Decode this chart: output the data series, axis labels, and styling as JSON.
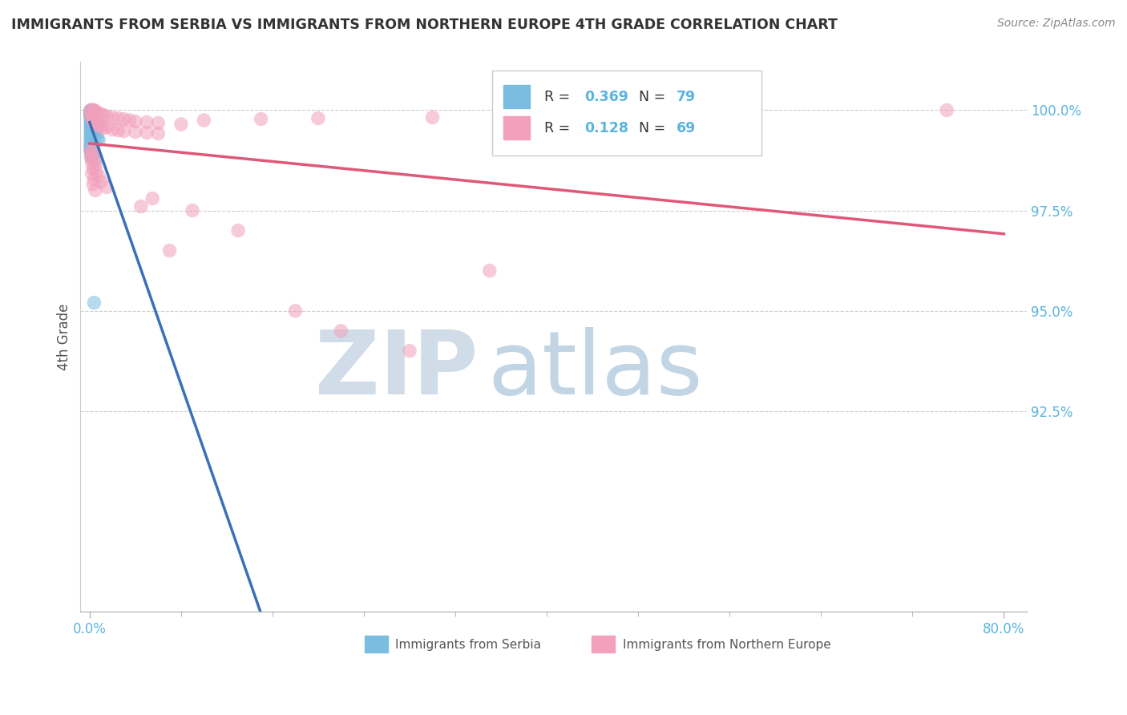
{
  "title": "IMMIGRANTS FROM SERBIA VS IMMIGRANTS FROM NORTHERN EUROPE 4TH GRADE CORRELATION CHART",
  "source": "Source: ZipAtlas.com",
  "ylabel": "4th Grade",
  "legend_label_1": "Immigrants from Serbia",
  "legend_label_2": "Immigrants from Northern Europe",
  "R1": 0.369,
  "N1": 79,
  "R2": 0.128,
  "N2": 69,
  "color1": "#7bbde0",
  "color2": "#f2a0bc",
  "trendline1_color": "#3a70b8",
  "trendline2_color": "#e05878",
  "watermark_zip": "ZIP",
  "watermark_atlas": "atlas",
  "watermark_color_zip": "#c8d8e8",
  "watermark_color_atlas": "#b0c8e0",
  "background": "#ffffff",
  "grid_color": "#cccccc",
  "tick_color": "#5ab4e0",
  "title_color": "#333333",
  "source_color": "#888888",
  "ylabel_color": "#555555",
  "legend_border_color": "#cccccc",
  "R_color": "#5ab4e0",
  "N_color": "#5ab4e0",
  "label_color": "#555555",
  "yticks": [
    0.925,
    0.95,
    0.975,
    1.0
  ],
  "ytick_labels": [
    "92.5%",
    "95.0%",
    "97.5%",
    "100.0%"
  ],
  "xtick_labels": [
    "0.0%",
    "80.0%"
  ],
  "ymin": 0.875,
  "ymax": 1.012,
  "xmin": -0.008,
  "xmax": 0.82
}
